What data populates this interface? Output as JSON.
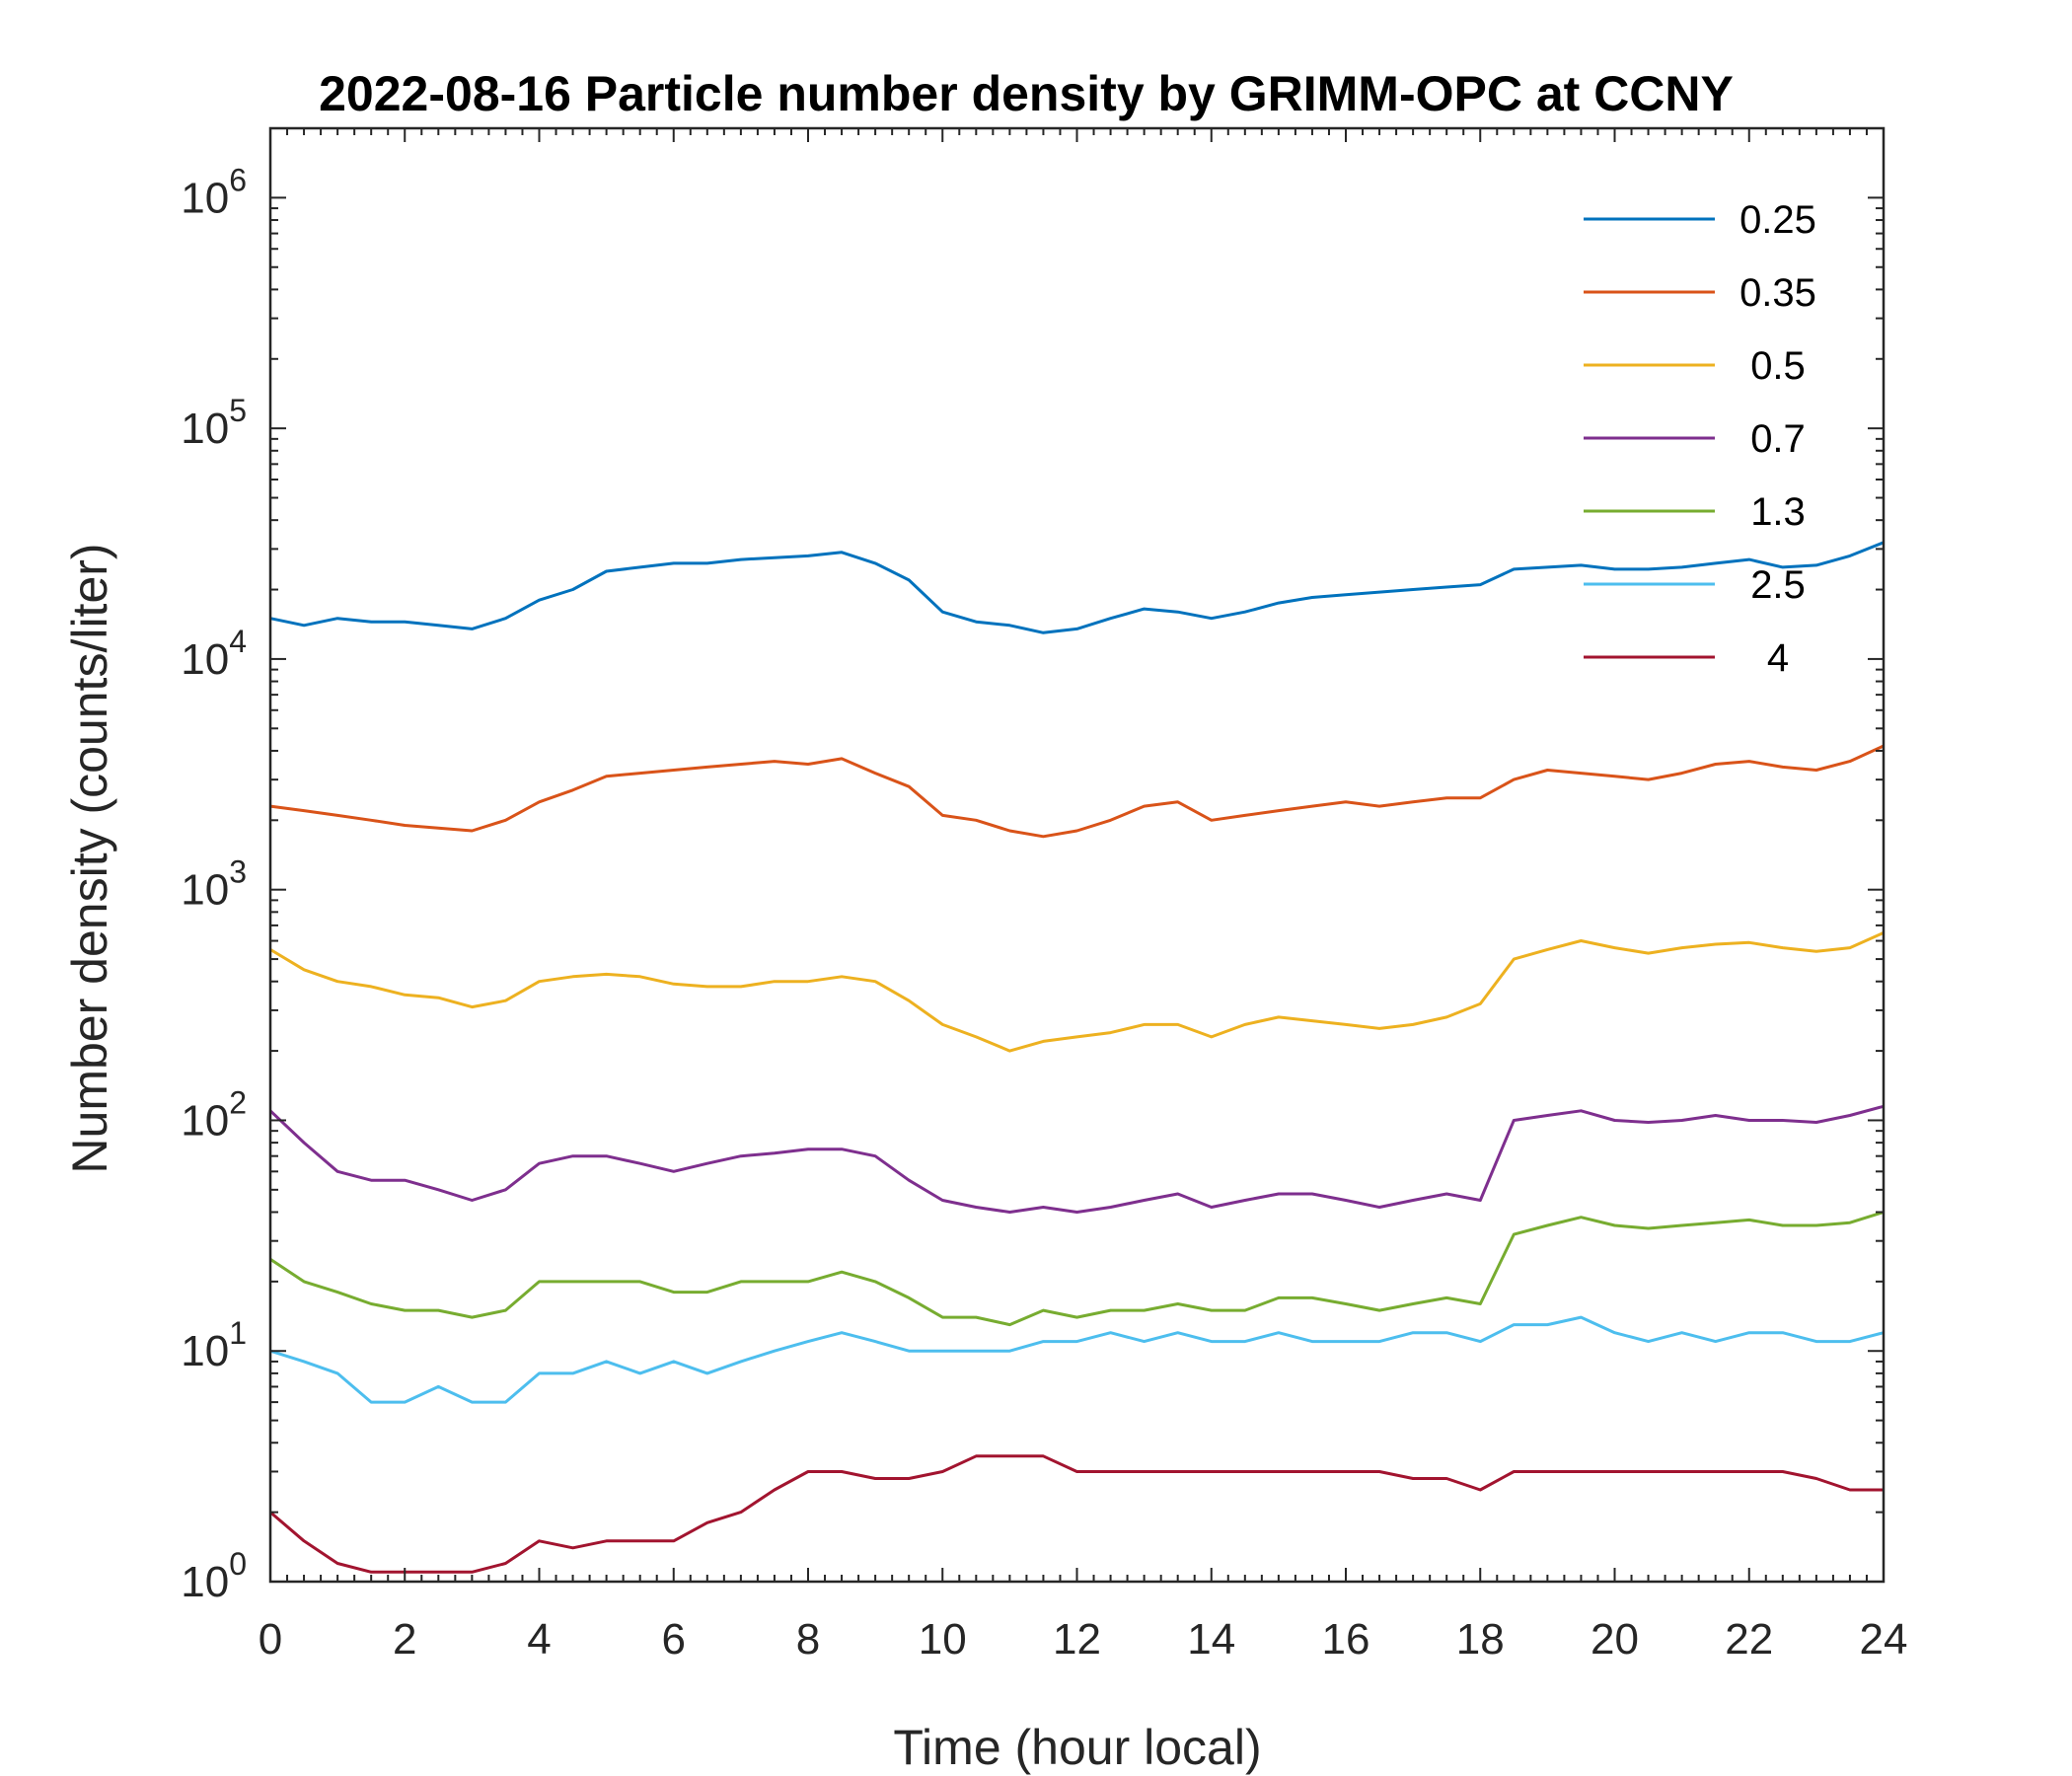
{
  "chart_data": {
    "type": "line",
    "title": "2022-08-16 Particle number density by GRIMM-OPC at CCNY",
    "xlabel": "Time (hour local)",
    "ylabel": "Number density (counts/liter)",
    "xlim": [
      0,
      24
    ],
    "ylim": [
      1,
      2000000
    ],
    "yscale": "log",
    "xticks": [
      0,
      2,
      4,
      6,
      8,
      10,
      12,
      14,
      16,
      18,
      20,
      22,
      24
    ],
    "yticks": [
      {
        "value": 1,
        "base": "10",
        "exp": "0"
      },
      {
        "value": 10,
        "base": "10",
        "exp": "1"
      },
      {
        "value": 100,
        "base": "10",
        "exp": "2"
      },
      {
        "value": 1000,
        "base": "10",
        "exp": "3"
      },
      {
        "value": 10000,
        "base": "10",
        "exp": "4"
      },
      {
        "value": 100000,
        "base": "10",
        "exp": "5"
      },
      {
        "value": 1000000,
        "base": "10",
        "exp": "6"
      }
    ],
    "grid": false,
    "legend_position": "top-right",
    "x": [
      0,
      0.5,
      1,
      1.5,
      2,
      2.5,
      3,
      3.5,
      4,
      4.5,
      5,
      5.5,
      6,
      6.5,
      7,
      7.5,
      8,
      8.5,
      9,
      9.5,
      10,
      10.5,
      11,
      11.5,
      12,
      12.5,
      13,
      13.5,
      14,
      14.5,
      15,
      15.5,
      16,
      16.5,
      17,
      17.5,
      18,
      18.5,
      19,
      19.5,
      20,
      20.5,
      21,
      21.5,
      22,
      22.5,
      23,
      23.5,
      24
    ],
    "series": [
      {
        "name": "0.25",
        "color": "#0072BD",
        "values": [
          15000,
          14000,
          15000,
          14500,
          14500,
          14000,
          13500,
          15000,
          18000,
          20000,
          24000,
          25000,
          26000,
          26000,
          27000,
          27500,
          28000,
          29000,
          26000,
          22000,
          16000,
          14500,
          14000,
          13000,
          13500,
          15000,
          16500,
          16000,
          15000,
          16000,
          17500,
          18500,
          19000,
          19500,
          20000,
          20500,
          21000,
          24500,
          25000,
          25500,
          24500,
          24500,
          25000,
          26000,
          27000,
          25000,
          25500,
          28000,
          32000
        ]
      },
      {
        "name": "0.35",
        "color": "#D95319",
        "values": [
          2300,
          2200,
          2100,
          2000,
          1900,
          1850,
          1800,
          2000,
          2400,
          2700,
          3100,
          3200,
          3300,
          3400,
          3500,
          3600,
          3500,
          3700,
          3200,
          2800,
          2100,
          2000,
          1800,
          1700,
          1800,
          2000,
          2300,
          2400,
          2000,
          2100,
          2200,
          2300,
          2400,
          2300,
          2400,
          2500,
          2500,
          3000,
          3300,
          3200,
          3100,
          3000,
          3200,
          3500,
          3600,
          3400,
          3300,
          3600,
          4200
        ]
      },
      {
        "name": "0.5",
        "color": "#EDB120",
        "values": [
          550,
          450,
          400,
          380,
          350,
          340,
          310,
          330,
          400,
          420,
          430,
          420,
          390,
          380,
          380,
          400,
          400,
          420,
          400,
          330,
          260,
          230,
          200,
          220,
          230,
          240,
          260,
          260,
          230,
          260,
          280,
          270,
          260,
          250,
          260,
          280,
          320,
          500,
          550,
          600,
          560,
          530,
          560,
          580,
          590,
          560,
          540,
          560,
          650
        ]
      },
      {
        "name": "0.7",
        "color": "#7E2F8E",
        "values": [
          110,
          80,
          60,
          55,
          55,
          50,
          45,
          50,
          65,
          70,
          70,
          65,
          60,
          65,
          70,
          72,
          75,
          75,
          70,
          55,
          45,
          42,
          40,
          42,
          40,
          42,
          45,
          48,
          42,
          45,
          48,
          48,
          45,
          42,
          45,
          48,
          45,
          100,
          105,
          110,
          100,
          98,
          100,
          105,
          100,
          100,
          98,
          105,
          115
        ]
      },
      {
        "name": "1.3",
        "color": "#77AC30",
        "values": [
          25,
          20,
          18,
          16,
          15,
          15,
          14,
          15,
          20,
          20,
          20,
          20,
          18,
          18,
          20,
          20,
          20,
          22,
          20,
          17,
          14,
          14,
          13,
          15,
          14,
          15,
          15,
          16,
          15,
          15,
          17,
          17,
          16,
          15,
          16,
          17,
          16,
          32,
          35,
          38,
          35,
          34,
          35,
          36,
          37,
          35,
          35,
          36,
          40
        ]
      },
      {
        "name": "2.5",
        "color": "#4DBEEE",
        "values": [
          10,
          9,
          8,
          6,
          6,
          7,
          6,
          6,
          8,
          8,
          9,
          8,
          9,
          8,
          9,
          10,
          11,
          12,
          11,
          10,
          10,
          10,
          10,
          11,
          11,
          12,
          11,
          12,
          11,
          11,
          12,
          11,
          11,
          11,
          12,
          12,
          11,
          13,
          13,
          14,
          12,
          11,
          12,
          11,
          12,
          12,
          11,
          11,
          12
        ]
      },
      {
        "name": "4",
        "color": "#A2142F",
        "values": [
          2,
          1.5,
          1.2,
          1.1,
          1.1,
          1.1,
          1.1,
          1.2,
          1.5,
          1.4,
          1.5,
          1.5,
          1.5,
          1.8,
          2,
          2.5,
          3,
          3,
          2.8,
          2.8,
          3,
          3.5,
          3.5,
          3.5,
          3,
          3,
          3,
          3,
          3,
          3,
          3,
          3,
          3,
          3,
          2.8,
          2.8,
          2.5,
          3,
          3,
          3,
          3,
          3,
          3,
          3,
          3,
          3,
          2.8,
          2.5,
          2.5
        ]
      }
    ]
  }
}
